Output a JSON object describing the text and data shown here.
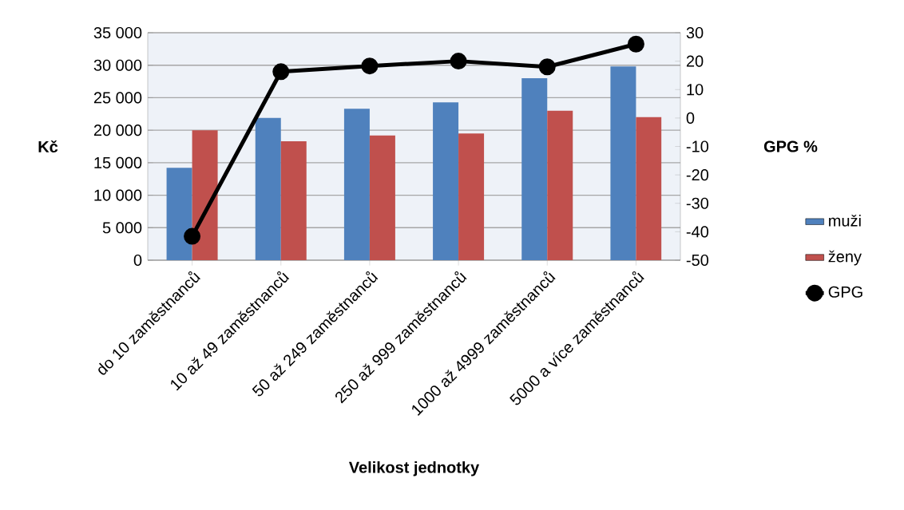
{
  "chart_data": {
    "type": "bar",
    "xlabel": "Velikost jednotky",
    "ylabel": "Kč",
    "y2label": "GPG %",
    "categories": [
      "do 10 zaměstnanců",
      "10 až 49 zaměstnanců",
      "50 až 249 zaměstnanců",
      "250 až 999 zaměstnanců",
      "1000 až 4999 zaměstnanců",
      "5000 a více zaměstnanců"
    ],
    "series": [
      {
        "name": "muži",
        "color": "#4f81bd",
        "values": [
          14200,
          21900,
          23300,
          24300,
          28000,
          29800
        ]
      },
      {
        "name": "ženy",
        "color": "#c0504d",
        "values": [
          20000,
          18300,
          19200,
          19500,
          23000,
          22000
        ]
      },
      {
        "name": "GPG",
        "type": "line",
        "axis": "y2",
        "color": "#000000",
        "marker": "circle",
        "values": [
          -41.6,
          16.3,
          18.3,
          20,
          18,
          26
        ]
      }
    ],
    "ylim": [
      0,
      35000
    ],
    "yticks": [
      0,
      {
        "value": 5000,
        "label": "5 000"
      },
      {
        "value": 10000,
        "label": "10 000"
      },
      {
        "value": 15000,
        "label": "15 000"
      },
      {
        "value": 20000,
        "label": "20 000"
      },
      {
        "value": 25000,
        "label": "25 000"
      },
      {
        "value": 30000,
        "label": "30 000"
      },
      {
        "value": 35000,
        "label": "35 000"
      }
    ],
    "y2lim": [
      -50,
      30
    ],
    "y2ticks": [
      -50,
      -40,
      -30,
      -20,
      -10,
      0,
      10,
      20,
      30
    ],
    "grid": "y",
    "legend": "right"
  }
}
